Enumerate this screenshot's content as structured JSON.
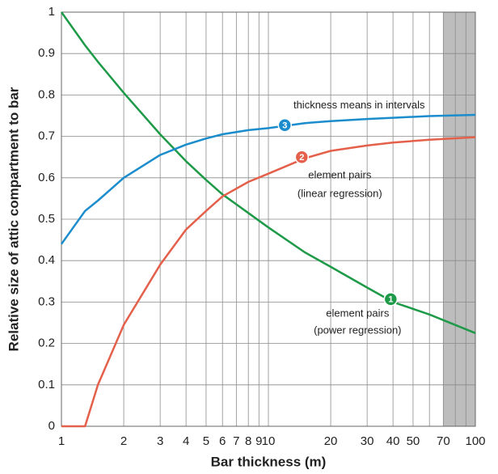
{
  "chart_data": {
    "type": "line",
    "xlabel": "Bar thickness (m)",
    "ylabel": "Relative size of attic compartment to bar",
    "xscale": "log",
    "x": [
      1,
      1.3,
      1.5,
      2,
      3,
      4,
      5,
      6,
      8,
      10,
      15,
      20,
      30,
      40,
      60,
      100
    ],
    "series": [
      {
        "color": "#1e9a48",
        "values": [
          1.0,
          0.92,
          0.88,
          0.805,
          0.705,
          0.64,
          0.595,
          0.56,
          0.515,
          0.48,
          0.42,
          0.385,
          0.335,
          0.3,
          0.27,
          0.225
        ]
      },
      {
        "color": "#e4604b",
        "values": [
          0,
          0,
          0.1,
          0.245,
          0.39,
          0.475,
          0.52,
          0.555,
          0.59,
          0.61,
          0.647,
          0.665,
          0.678,
          0.685,
          0.692,
          0.698
        ]
      },
      {
        "color": "#1b8ccc",
        "values": [
          0.44,
          0.52,
          0.545,
          0.6,
          0.655,
          0.68,
          0.695,
          0.705,
          0.715,
          0.72,
          0.732,
          0.737,
          0.742,
          0.745,
          0.749,
          0.752
        ]
      }
    ],
    "markers": [
      {
        "label": "1",
        "series": 0,
        "x": 39,
        "y": 0.307,
        "text": [
          "element pairs",
          "(power regression)"
        ]
      },
      {
        "label": "2",
        "series": 1,
        "x": 14.5,
        "y": 0.65,
        "text": [
          "element pairs",
          "(linear regression)"
        ]
      },
      {
        "label": "3",
        "series": 2,
        "x": 12,
        "y": 0.727,
        "text": [
          "thickness means in intervals"
        ]
      }
    ],
    "shade": [
      70,
      100
    ],
    "xlim": [
      1,
      100
    ],
    "ylim": [
      0,
      1
    ],
    "xticks": [
      1,
      2,
      3,
      4,
      5,
      6,
      7,
      8,
      9,
      10,
      20,
      30,
      40,
      50,
      70,
      100
    ],
    "xminor": [
      60,
      80,
      90
    ],
    "yticks": [
      0,
      0.1,
      0.2,
      0.3,
      0.4,
      0.5,
      0.6,
      0.7,
      0.8,
      0.9,
      1
    ],
    "grid": true
  }
}
